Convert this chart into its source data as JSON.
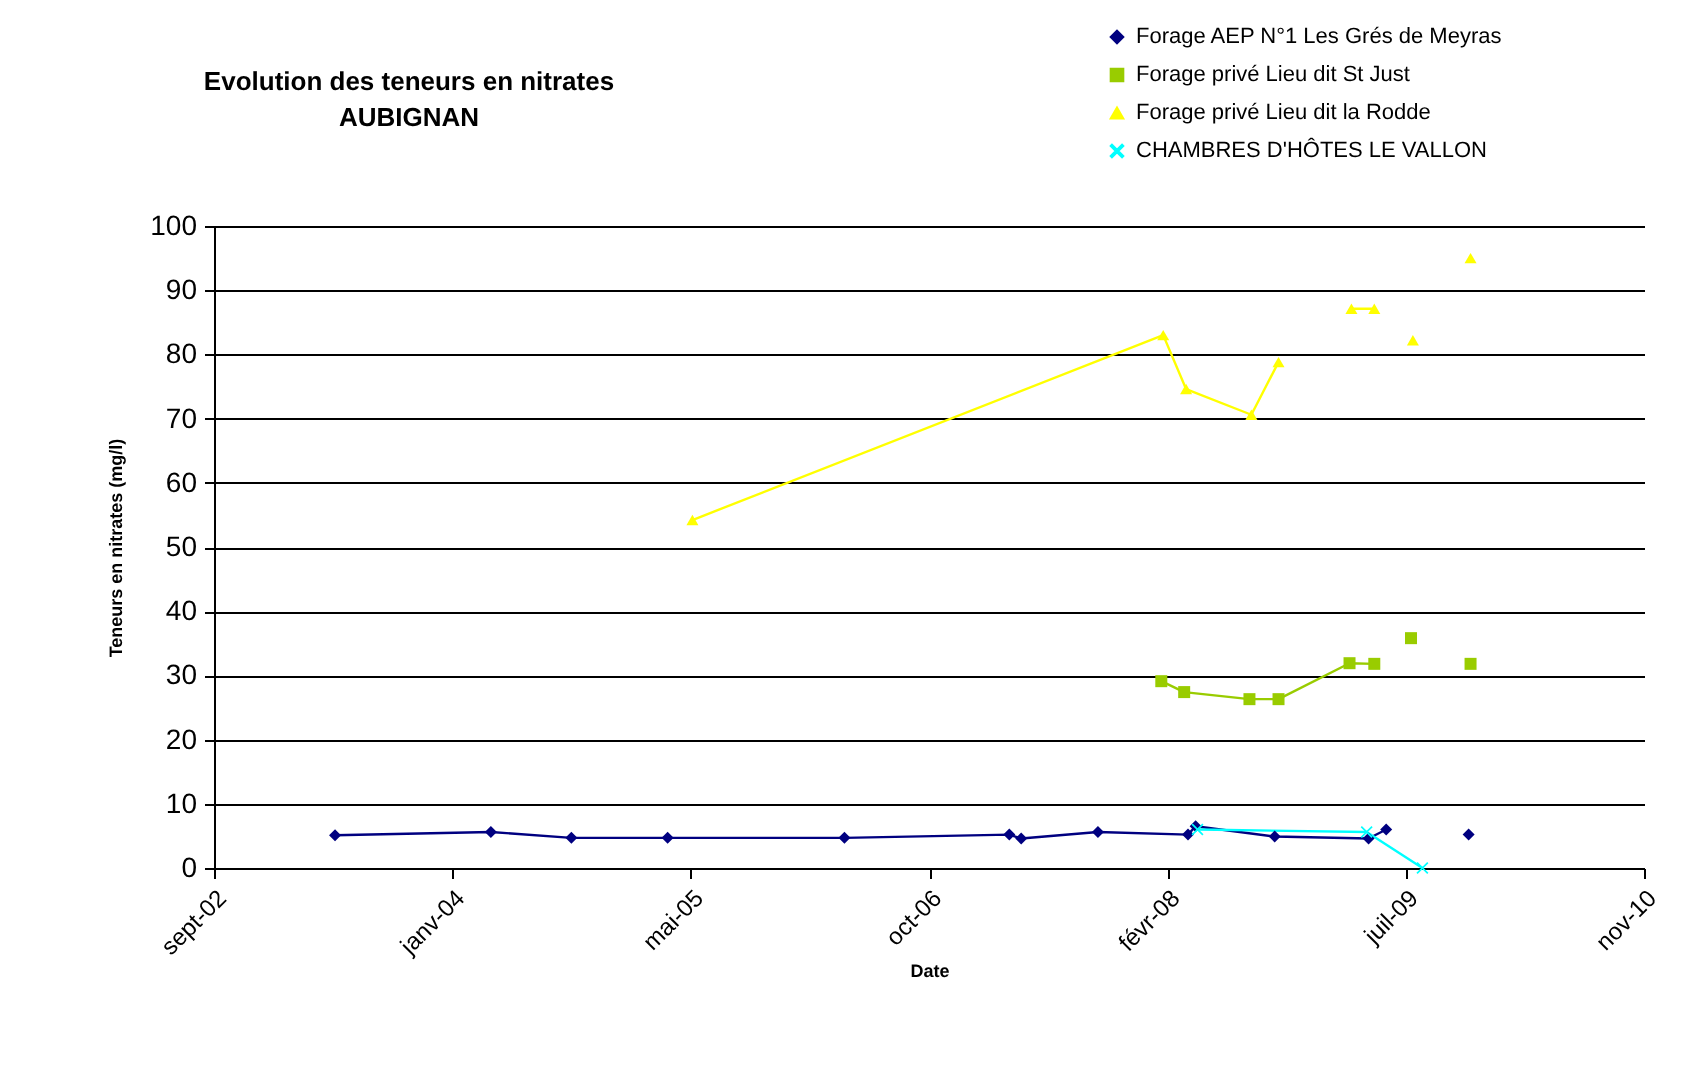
{
  "chart_data": {
    "type": "line",
    "title": "Evolution des teneurs en nitrates\nAUBIGNAN",
    "xlabel": "Date",
    "ylabel": "Teneurs en nitrates (mg/l)",
    "xlim": [
      "2002-09-01",
      "2010-11-19"
    ],
    "xticks": [
      {
        "value": "2002-09-01",
        "label": "sept-02"
      },
      {
        "value": "2004-01-14",
        "label": "janv-04"
      },
      {
        "value": "2005-05-29",
        "label": "mai-05"
      },
      {
        "value": "2006-10-11",
        "label": "oct-06"
      },
      {
        "value": "2008-02-23",
        "label": "févr-08"
      },
      {
        "value": "2009-07-07",
        "label": "juil-09"
      },
      {
        "value": "2010-11-19",
        "label": "nov-10"
      }
    ],
    "ylim": [
      0,
      100
    ],
    "yticks": [
      0,
      10,
      20,
      30,
      40,
      50,
      60,
      70,
      80,
      90,
      100
    ],
    "grid": "y",
    "legend": "top right",
    "line_style": "solid",
    "series": [
      {
        "name": "Forage AEP N°1 Les Grés de Meyras",
        "color": "#000080",
        "marker": "diamond",
        "x": [
          "2003-05-13",
          "2004-04-04",
          "2004-09-20",
          "2005-04-10",
          "2006-04-16",
          "2007-03-28",
          "2007-04-22",
          "2007-09-30",
          "2008-04-06",
          "2008-04-22",
          "2008-10-05",
          "2009-04-20",
          "2009-05-27",
          "2009-08-20",
          "2009-11-16"
        ],
        "values": [
          5.1,
          5.6,
          4.7,
          4.7,
          4.7,
          5.2,
          4.6,
          5.6,
          5.2,
          6.5,
          4.9,
          4.6,
          6.0,
          null,
          5.2
        ]
      },
      {
        "name": "Forage privé Lieu dit St Just",
        "color": "#99cc00",
        "marker": "square",
        "x": [
          "2008-02-10",
          "2008-03-29",
          "2008-08-13",
          "2008-10-13",
          "2009-03-11",
          "2009-05-02",
          "2009-06-10",
          "2009-07-18",
          "2009-09-15",
          "2009-11-20"
        ],
        "values": [
          29.1,
          27.4,
          26.3,
          26.3,
          31.9,
          31.8,
          null,
          35.8,
          null,
          31.8
        ]
      },
      {
        "name": "Forage privé Lieu dit la Rodde",
        "color": "#ffff00",
        "marker": "triangle",
        "x": [
          "2005-06-01",
          "2008-02-14",
          "2008-04-02",
          "2008-08-17",
          "2008-10-13",
          "2008-12-20",
          "2009-03-15",
          "2009-05-02",
          "2009-06-10",
          "2009-07-22",
          "2009-09-15",
          "2009-11-20"
        ],
        "values": [
          54.2,
          83.0,
          74.6,
          70.6,
          78.8,
          null,
          87.1,
          87.1,
          null,
          82.2,
          null,
          95.0
        ]
      },
      {
        "name": "CHAMBRES D'HÔTES LE VALLON",
        "color": "#00ffff",
        "marker": "cross",
        "x": [
          "2008-04-26",
          "2009-04-16",
          "2009-08-11"
        ],
        "values": [
          6.0,
          5.6,
          0
        ]
      }
    ]
  }
}
